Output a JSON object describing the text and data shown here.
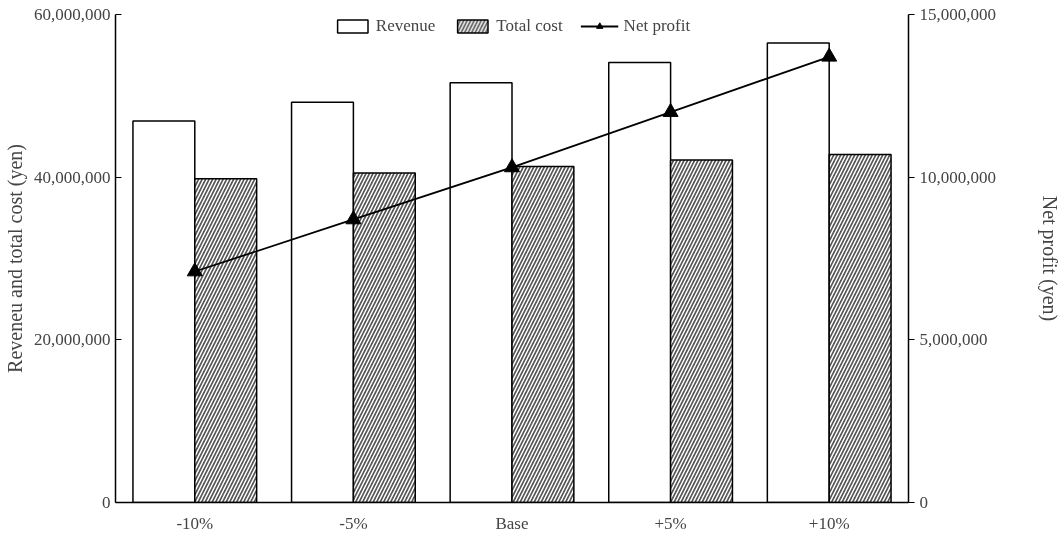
{
  "chart_data": {
    "type": "bar",
    "categories": [
      "-10%",
      "-5%",
      "Base",
      "+5%",
      "+10%"
    ],
    "ylabel": "Reveneu and total cost (yen)",
    "y2label": "Net profit (yen)",
    "series": [
      {
        "name": "Revenue",
        "color": "#ffffff",
        "values": [
          46900000,
          49200000,
          51600000,
          54100000,
          56500000
        ]
      },
      {
        "name": "Total cost",
        "color": "#555555",
        "values": [
          39800000,
          40500000,
          41300000,
          42100000,
          42800000
        ]
      },
      {
        "name": "Net profit",
        "type": "line",
        "axis": "y2",
        "color": "#000000",
        "marker": "triangle",
        "values": [
          7100000,
          8700000,
          10300000,
          12000000,
          13700000
        ]
      }
    ],
    "ylim": [
      0,
      60000000
    ],
    "yticks": [
      {
        "value": 0,
        "label": "0"
      },
      {
        "value": 20000000,
        "label": "20,000,000"
      },
      {
        "value": 40000000,
        "label": "40,000,000"
      },
      {
        "value": 60000000,
        "label": "60,000,000"
      }
    ],
    "y2lim": [
      0,
      15000000
    ],
    "y2ticks": [
      {
        "value": 0,
        "label": "0"
      },
      {
        "value": 5000000,
        "label": "5,000,000"
      },
      {
        "value": 10000000,
        "label": "10,000,000"
      },
      {
        "value": 15000000,
        "label": "15,000,000"
      }
    ],
    "grid": false,
    "legend": "top"
  }
}
